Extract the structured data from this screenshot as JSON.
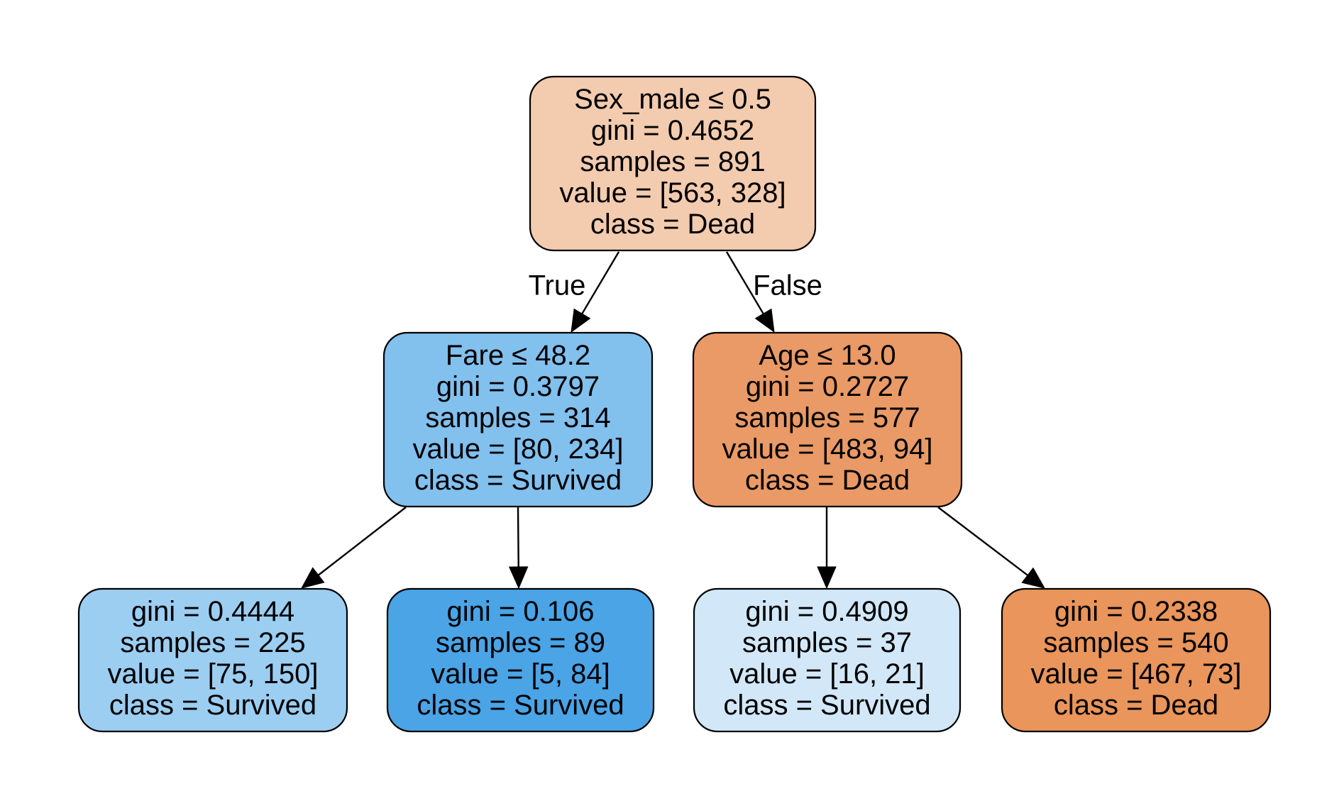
{
  "tree": {
    "nodes": [
      {
        "id": "root",
        "lines": [
          "Sex_male ≤ 0.5",
          "gini = 0.4652",
          "samples = 891",
          "value = [563, 328]",
          "class = Dead"
        ],
        "fill": "#f3cbaf"
      },
      {
        "id": "fare",
        "lines": [
          "Fare ≤ 48.2",
          "gini = 0.3797",
          "samples = 314",
          "value = [80, 234]",
          "class = Survived"
        ],
        "fill": "#82c0ee"
      },
      {
        "id": "age",
        "lines": [
          "Age ≤ 13.0",
          "gini = 0.2727",
          "samples = 577",
          "value = [483, 94]",
          "class = Dead"
        ],
        "fill": "#ea9a66"
      },
      {
        "id": "leaf1",
        "lines": [
          "gini = 0.4444",
          "samples = 225",
          "value = [75, 150]",
          "class = Survived"
        ],
        "fill": "#9ccef2"
      },
      {
        "id": "leaf2",
        "lines": [
          "gini = 0.106",
          "samples = 89",
          "value = [5, 84]",
          "class = Survived"
        ],
        "fill": "#4aa4e6"
      },
      {
        "id": "leaf3",
        "lines": [
          "gini = 0.4909",
          "samples = 37",
          "value = [16, 21]",
          "class = Survived"
        ],
        "fill": "#d2e8f8"
      },
      {
        "id": "leaf4",
        "lines": [
          "gini = 0.2338",
          "samples = 540",
          "value = [467, 73]",
          "class = Dead"
        ],
        "fill": "#e9955b"
      }
    ],
    "edges": [
      {
        "from": "root",
        "to": "fare",
        "label": "True"
      },
      {
        "from": "root",
        "to": "age",
        "label": "False"
      },
      {
        "from": "fare",
        "to": "leaf1",
        "label": ""
      },
      {
        "from": "fare",
        "to": "leaf2",
        "label": ""
      },
      {
        "from": "age",
        "to": "leaf3",
        "label": ""
      },
      {
        "from": "age",
        "to": "leaf4",
        "label": ""
      }
    ]
  }
}
